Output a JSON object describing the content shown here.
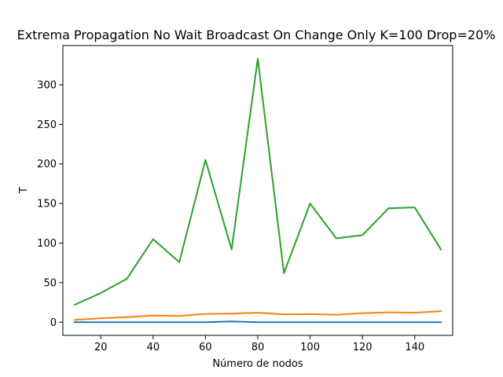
{
  "chart_data": {
    "type": "line",
    "title": "Extrema Propagation No Wait Broadcast On Change Only K=100 Drop=20%",
    "xlabel": "Número de nodos",
    "ylabel": "T",
    "x": [
      10,
      20,
      30,
      40,
      50,
      60,
      70,
      80,
      90,
      100,
      110,
      120,
      130,
      140,
      150
    ],
    "xlim": [
      5.5,
      154.5
    ],
    "ylim": [
      -16.6,
      349.6
    ],
    "xticks": [
      20,
      40,
      60,
      80,
      100,
      120,
      140
    ],
    "yticks": [
      0,
      50,
      100,
      150,
      200,
      250,
      300
    ],
    "grid": false,
    "series": [
      {
        "color": "#1f77b4",
        "values": [
          0,
          0,
          0,
          0,
          0,
          0,
          1,
          0,
          0,
          0,
          0,
          0,
          0,
          0,
          0
        ]
      },
      {
        "color": "#ff7f0e",
        "values": [
          3,
          5,
          6.5,
          8.5,
          8,
          10.5,
          11,
          12,
          10,
          10.3,
          9.5,
          11.5,
          12.5,
          12,
          14
        ]
      },
      {
        "color": "#2ca02c",
        "values": [
          22,
          37,
          55,
          105,
          76,
          205,
          92,
          333,
          62,
          150,
          106,
          110,
          144,
          145,
          92
        ]
      }
    ]
  }
}
